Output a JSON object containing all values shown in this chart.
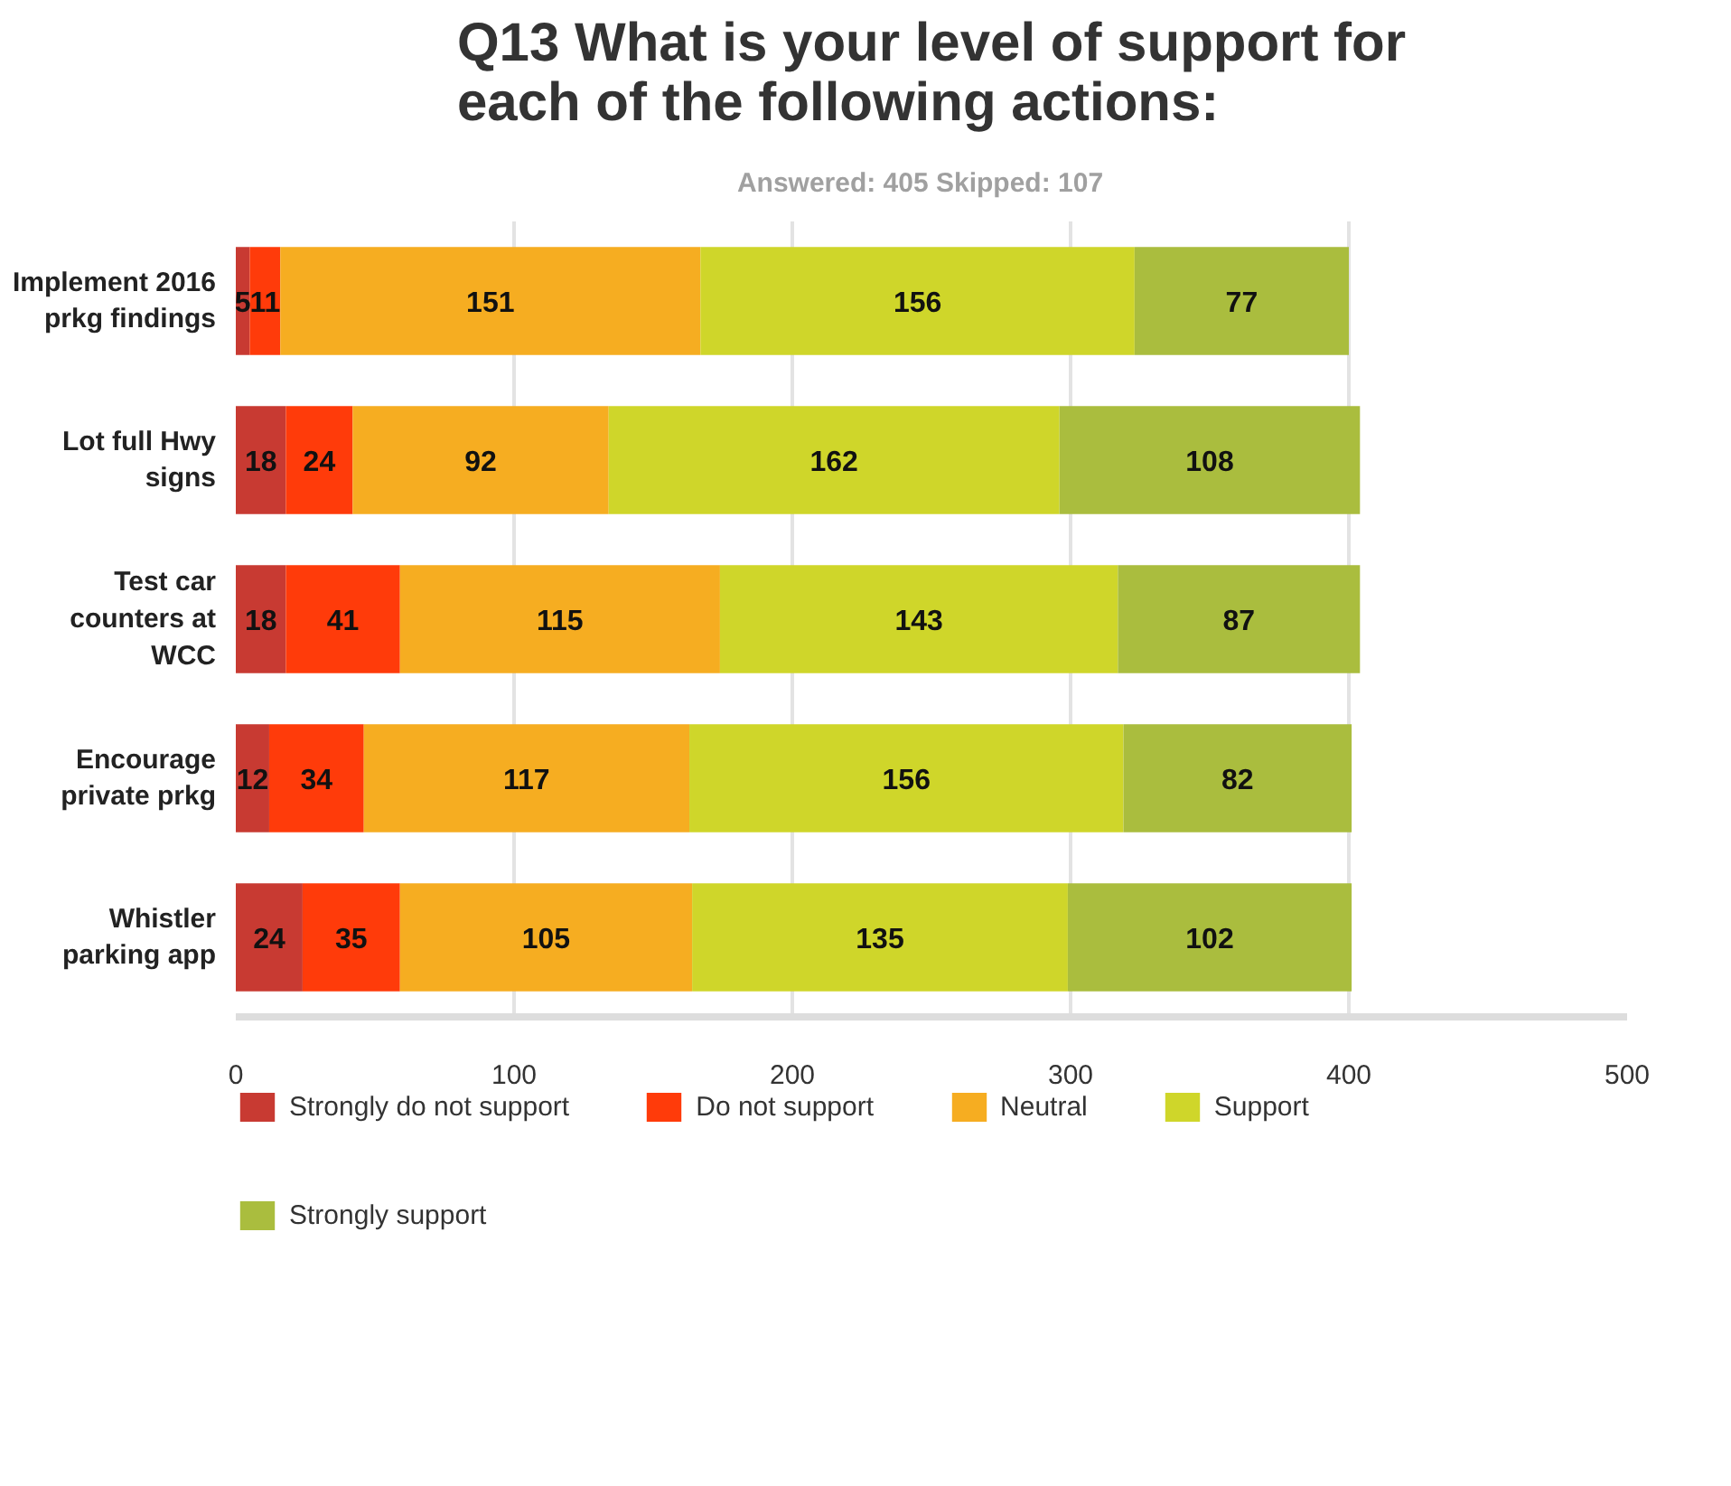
{
  "chart_data": {
    "type": "bar",
    "orientation": "horizontal",
    "stacked": true,
    "title": "Q13 What is your level of support for each of the following actions:",
    "subtitle": "Answered: 405    Skipped: 107",
    "categories": [
      "Implement 2016 prkg findings",
      "Lot full Hwy signs",
      "Test car counters at WCC",
      "Encourage private prkg",
      "Whistler parking app"
    ],
    "series": [
      {
        "name": "Strongly do not support",
        "color": "#c83a32",
        "values": [
          5,
          18,
          18,
          12,
          24
        ]
      },
      {
        "name": "Do not support",
        "color": "#ff3b0a",
        "values": [
          11,
          24,
          41,
          34,
          35
        ]
      },
      {
        "name": "Neutral",
        "color": "#f6ad21",
        "values": [
          151,
          92,
          115,
          117,
          105
        ]
      },
      {
        "name": "Support",
        "color": "#cfd62a",
        "values": [
          156,
          162,
          143,
          156,
          135
        ]
      },
      {
        "name": "Strongly support",
        "color": "#aabd3e",
        "values": [
          77,
          108,
          87,
          82,
          102
        ]
      }
    ],
    "xlim": [
      0,
      500
    ],
    "xticks": [
      0,
      100,
      200,
      300,
      400,
      500
    ],
    "grid": "x",
    "legend": "bottom",
    "data_labels": true
  }
}
